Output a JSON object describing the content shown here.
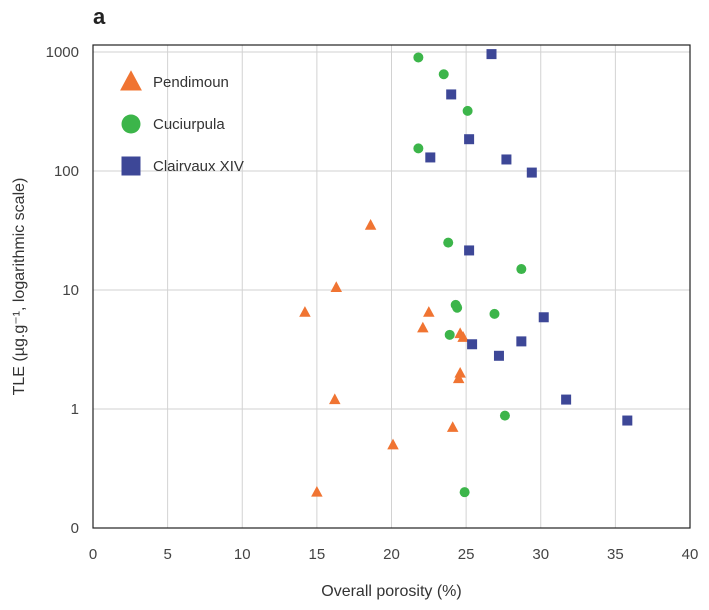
{
  "chart_data": {
    "type": "scatter",
    "panel_label": "a",
    "title": "",
    "xlabel": "Overall porosity (%)",
    "ylabel": "TLE (µg.g⁻¹, logarithmic scale)",
    "xlim": [
      0,
      40
    ],
    "ylim_log": [
      0.1,
      1000
    ],
    "y_scale": "log",
    "x_ticks": [
      0,
      5,
      10,
      15,
      20,
      25,
      30,
      35,
      40
    ],
    "y_ticks": [
      {
        "label": "1000",
        "value": 1000
      },
      {
        "label": "100",
        "value": 100
      },
      {
        "label": "10",
        "value": 10
      },
      {
        "label": "1",
        "value": 1
      },
      {
        "label": "0",
        "value": 0.1
      }
    ],
    "grid": true,
    "legend_position": "top-left",
    "series": [
      {
        "name": "Pendimoun",
        "marker": "triangle",
        "color": "#f07432",
        "points": [
          [
            14.2,
            6.5
          ],
          [
            16.3,
            10.5
          ],
          [
            18.6,
            35
          ],
          [
            22.5,
            6.5
          ],
          [
            22.1,
            4.8
          ],
          [
            24.6,
            4.3
          ],
          [
            24.8,
            4.0
          ],
          [
            24.6,
            2.0
          ],
          [
            24.5,
            1.8
          ],
          [
            16.2,
            1.2
          ],
          [
            24.1,
            0.7
          ],
          [
            20.1,
            0.5
          ],
          [
            15.0,
            0.2
          ]
        ]
      },
      {
        "name": "Cuciurpula",
        "marker": "circle",
        "color": "#3cb54a",
        "points": [
          [
            21.8,
            900
          ],
          [
            23.5,
            650
          ],
          [
            25.1,
            320
          ],
          [
            21.8,
            155
          ],
          [
            23.8,
            25
          ],
          [
            28.7,
            15
          ],
          [
            24.3,
            7.5
          ],
          [
            24.4,
            7.1
          ],
          [
            26.9,
            6.3
          ],
          [
            23.9,
            4.2
          ],
          [
            27.6,
            0.88
          ],
          [
            24.9,
            0.2
          ]
        ]
      },
      {
        "name": "Clairvaux XIV",
        "marker": "square",
        "color": "#3d4797",
        "points": [
          [
            26.7,
            960
          ],
          [
            24.0,
            440
          ],
          [
            25.2,
            185
          ],
          [
            22.6,
            130
          ],
          [
            27.7,
            125
          ],
          [
            29.4,
            97
          ],
          [
            25.2,
            21.5
          ],
          [
            30.2,
            5.9
          ],
          [
            25.4,
            3.5
          ],
          [
            27.2,
            2.8
          ],
          [
            28.7,
            3.7
          ],
          [
            31.7,
            1.2
          ],
          [
            35.8,
            0.8
          ]
        ]
      }
    ]
  }
}
